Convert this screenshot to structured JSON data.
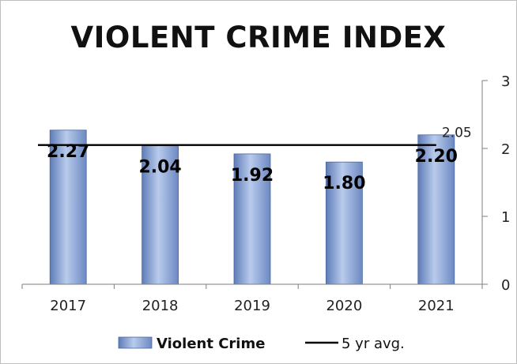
{
  "chart_data": {
    "type": "bar",
    "title": "VIOLENT CRIME INDEX",
    "categories": [
      "2017",
      "2018",
      "2019",
      "2020",
      "2021"
    ],
    "series": [
      {
        "name": "Violent Crime",
        "type": "bar",
        "values": [
          2.27,
          2.04,
          1.92,
          1.8,
          2.2
        ],
        "data_labels": [
          "2.27",
          "2.04",
          "1.92",
          "1.80",
          "2.20"
        ],
        "color": "#8fa8d6"
      },
      {
        "name": "5 yr avg.",
        "type": "line",
        "values": [
          2.05,
          2.05,
          2.05,
          2.05,
          2.05
        ],
        "end_label": "2.05",
        "color": "#000000"
      }
    ],
    "ylim": [
      0,
      3
    ],
    "yticks": [
      "0",
      "1",
      "2",
      "3"
    ],
    "y_axis_side": "right",
    "grid": false,
    "legend_position": "bottom"
  }
}
